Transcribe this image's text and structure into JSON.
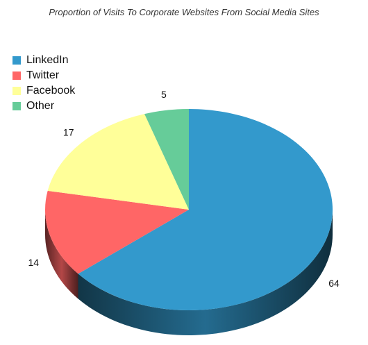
{
  "chart_data": {
    "type": "pie",
    "title": "Proportion of Visits To Corporate Websites From Social Media Sites",
    "legend_position": "top-left",
    "style": "3d",
    "slices": [
      {
        "label": "LinkedIn",
        "value": 64,
        "color": "#3399CC"
      },
      {
        "label": "Twitter",
        "value": 14,
        "color": "#FF6666"
      },
      {
        "label": "Facebook",
        "value": 17,
        "color": "#FFFF99"
      },
      {
        "label": "Other",
        "value": 5,
        "color": "#66CC99"
      }
    ]
  }
}
